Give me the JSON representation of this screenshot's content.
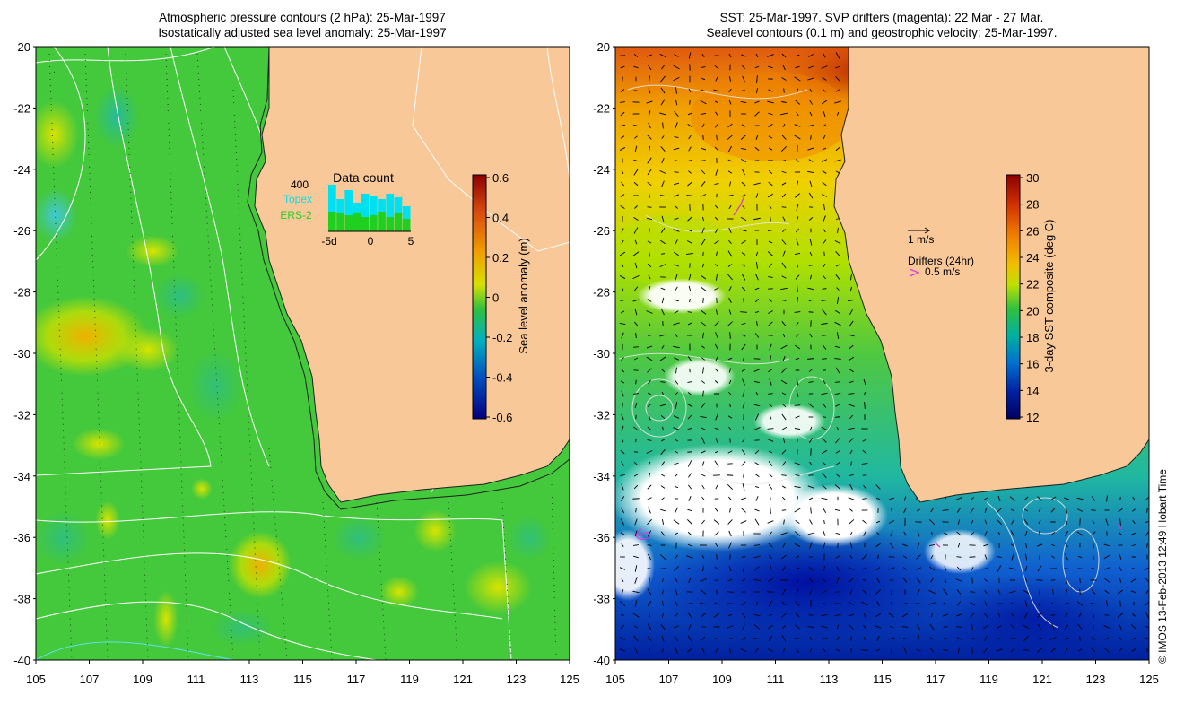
{
  "left_panel": {
    "title_line1": "Atmospheric pressure contours (2 hPa): 25-Mar-1997",
    "title_line2": "Isostatically adjusted sea level anomaly: 25-Mar-1997",
    "colorbar": {
      "label": "Sea level anomaly (m)",
      "ticks": [
        "0.6",
        "0.4",
        "0.2",
        "0",
        "-0.2",
        "-0.4",
        "-0.6"
      ],
      "colors": [
        "#8b0000",
        "#d84a10",
        "#f0a000",
        "#d8e000",
        "#30c040",
        "#00b0c0",
        "#0050c0",
        "#000080"
      ]
    },
    "inset": {
      "title": "Data count",
      "ylabel": "400",
      "legend_topex": "Topex",
      "legend_ers2": "ERS-2",
      "xticks": [
        "-5d",
        "0",
        "5"
      ],
      "topex_color": "#00e0f0",
      "ers2_color": "#20d020"
    }
  },
  "right_panel": {
    "title_line1": "SST: 25-Mar-1997. SVP drifters (magenta): 22 Mar - 27 Mar.",
    "title_line2": "Sealevel contours (0.1 m) and geostrophic velocity: 25-Mar-1997.",
    "velocity_scale": "1 m/s",
    "drifter_legend_title": "Drifters (24hr)",
    "drifter_legend_value": "0.5 m/s",
    "colorbar": {
      "label": "3-day SST composite (deg C)",
      "ticks": [
        "30",
        "28",
        "26",
        "24",
        "22",
        "20",
        "18",
        "16",
        "14",
        "12"
      ],
      "colors": [
        "#8b0000",
        "#d03000",
        "#f08000",
        "#f0c000",
        "#c0e000",
        "#30c040",
        "#00b0a0",
        "#0070d0",
        "#0020a0",
        "#000060"
      ]
    }
  },
  "axes": {
    "lat_ticks": [
      "-20",
      "-22",
      "-24",
      "-26",
      "-28",
      "-30",
      "-32",
      "-34",
      "-36",
      "-38",
      "-40"
    ],
    "lon_ticks": [
      "105",
      "107",
      "109",
      "111",
      "113",
      "115",
      "117",
      "119",
      "121",
      "123",
      "125"
    ]
  },
  "colors": {
    "land": "#f8c898",
    "ocean_base": "#44c83c",
    "missing": "#ffffff"
  },
  "credit": "© IMOS 13-Feb-2013 12:49 Hobart Time"
}
